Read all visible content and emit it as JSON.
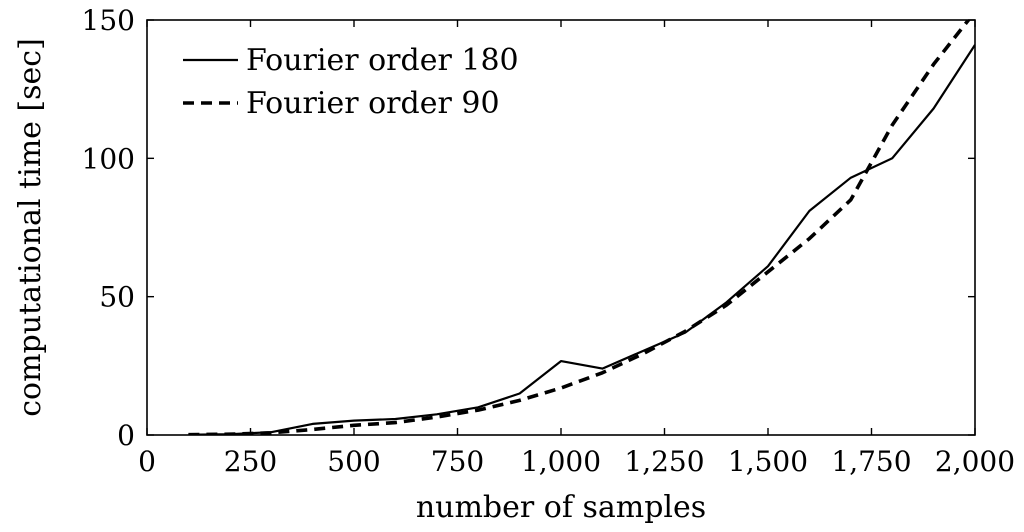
{
  "chart_data": {
    "type": "line",
    "xlabel": "number of samples",
    "ylabel": "computational time [sec]",
    "xlim": [
      0,
      2000
    ],
    "ylim": [
      0,
      150
    ],
    "x_ticks": [
      0,
      250,
      500,
      750,
      1000,
      1250,
      1500,
      1750,
      2000
    ],
    "x_tick_labels": [
      "0",
      "250",
      "500",
      "750",
      "1,000",
      "1,250",
      "1,500",
      "1,750",
      "2,000"
    ],
    "y_ticks": [
      0,
      50,
      100,
      150
    ],
    "y_tick_labels": [
      "0",
      "50",
      "100",
      "150"
    ],
    "grid": false,
    "legend_position": "top-left",
    "series": [
      {
        "name": "Fourier order 180",
        "style": "solid",
        "color": "#000000",
        "x": [
          100,
          200,
          300,
          400,
          500,
          600,
          700,
          800,
          900,
          1000,
          1100,
          1200,
          1300,
          1400,
          1500,
          1600,
          1700,
          1800,
          1900,
          2000
        ],
        "y": [
          0.1,
          0.3,
          1.0,
          4.0,
          5.2,
          5.8,
          7.5,
          10.0,
          15.0,
          26.7,
          24.0,
          30.5,
          37.0,
          48.0,
          61.0,
          81.0,
          93.0,
          100.0,
          118.0,
          141.0
        ]
      },
      {
        "name": "Fourier order 90",
        "style": "dashed",
        "color": "#000000",
        "x": [
          100,
          200,
          300,
          400,
          500,
          600,
          700,
          800,
          900,
          1000,
          1100,
          1200,
          1300,
          1400,
          1500,
          1600,
          1700,
          1800,
          1900,
          2000
        ],
        "y": [
          0.1,
          0.3,
          0.8,
          2.0,
          3.5,
          4.5,
          6.5,
          9.0,
          12.5,
          17.0,
          22.5,
          29.5,
          37.5,
          47.0,
          59.0,
          71.0,
          85.0,
          112.0,
          134.0,
          153.0
        ]
      }
    ]
  }
}
